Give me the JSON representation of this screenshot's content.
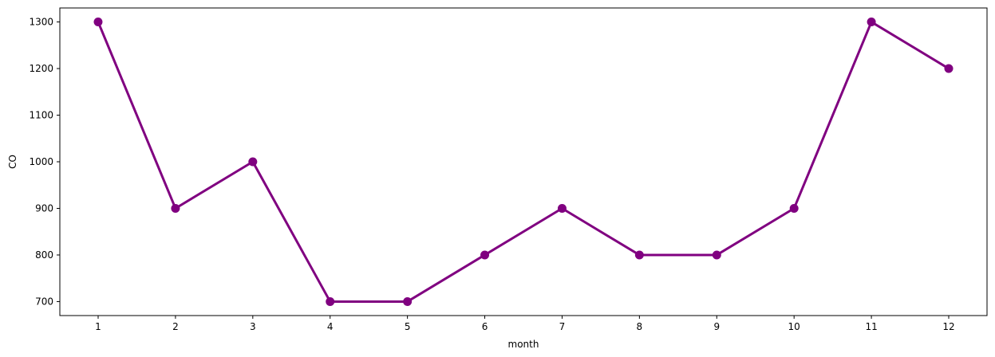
{
  "chart_data": {
    "type": "line",
    "title": "",
    "xlabel": "month",
    "ylabel": "CO",
    "categories": [
      "1",
      "2",
      "3",
      "4",
      "5",
      "6",
      "7",
      "8",
      "9",
      "10",
      "11",
      "12"
    ],
    "series": [
      {
        "values": [
          1300,
          900,
          1000,
          700,
          700,
          800,
          900,
          800,
          800,
          900,
          1300,
          1200
        ]
      }
    ],
    "yticks": [
      700,
      800,
      900,
      1000,
      1100,
      1200,
      1300
    ],
    "ylim": [
      670,
      1330
    ],
    "grid": false,
    "line_color": "#800080",
    "marker": "circle"
  }
}
